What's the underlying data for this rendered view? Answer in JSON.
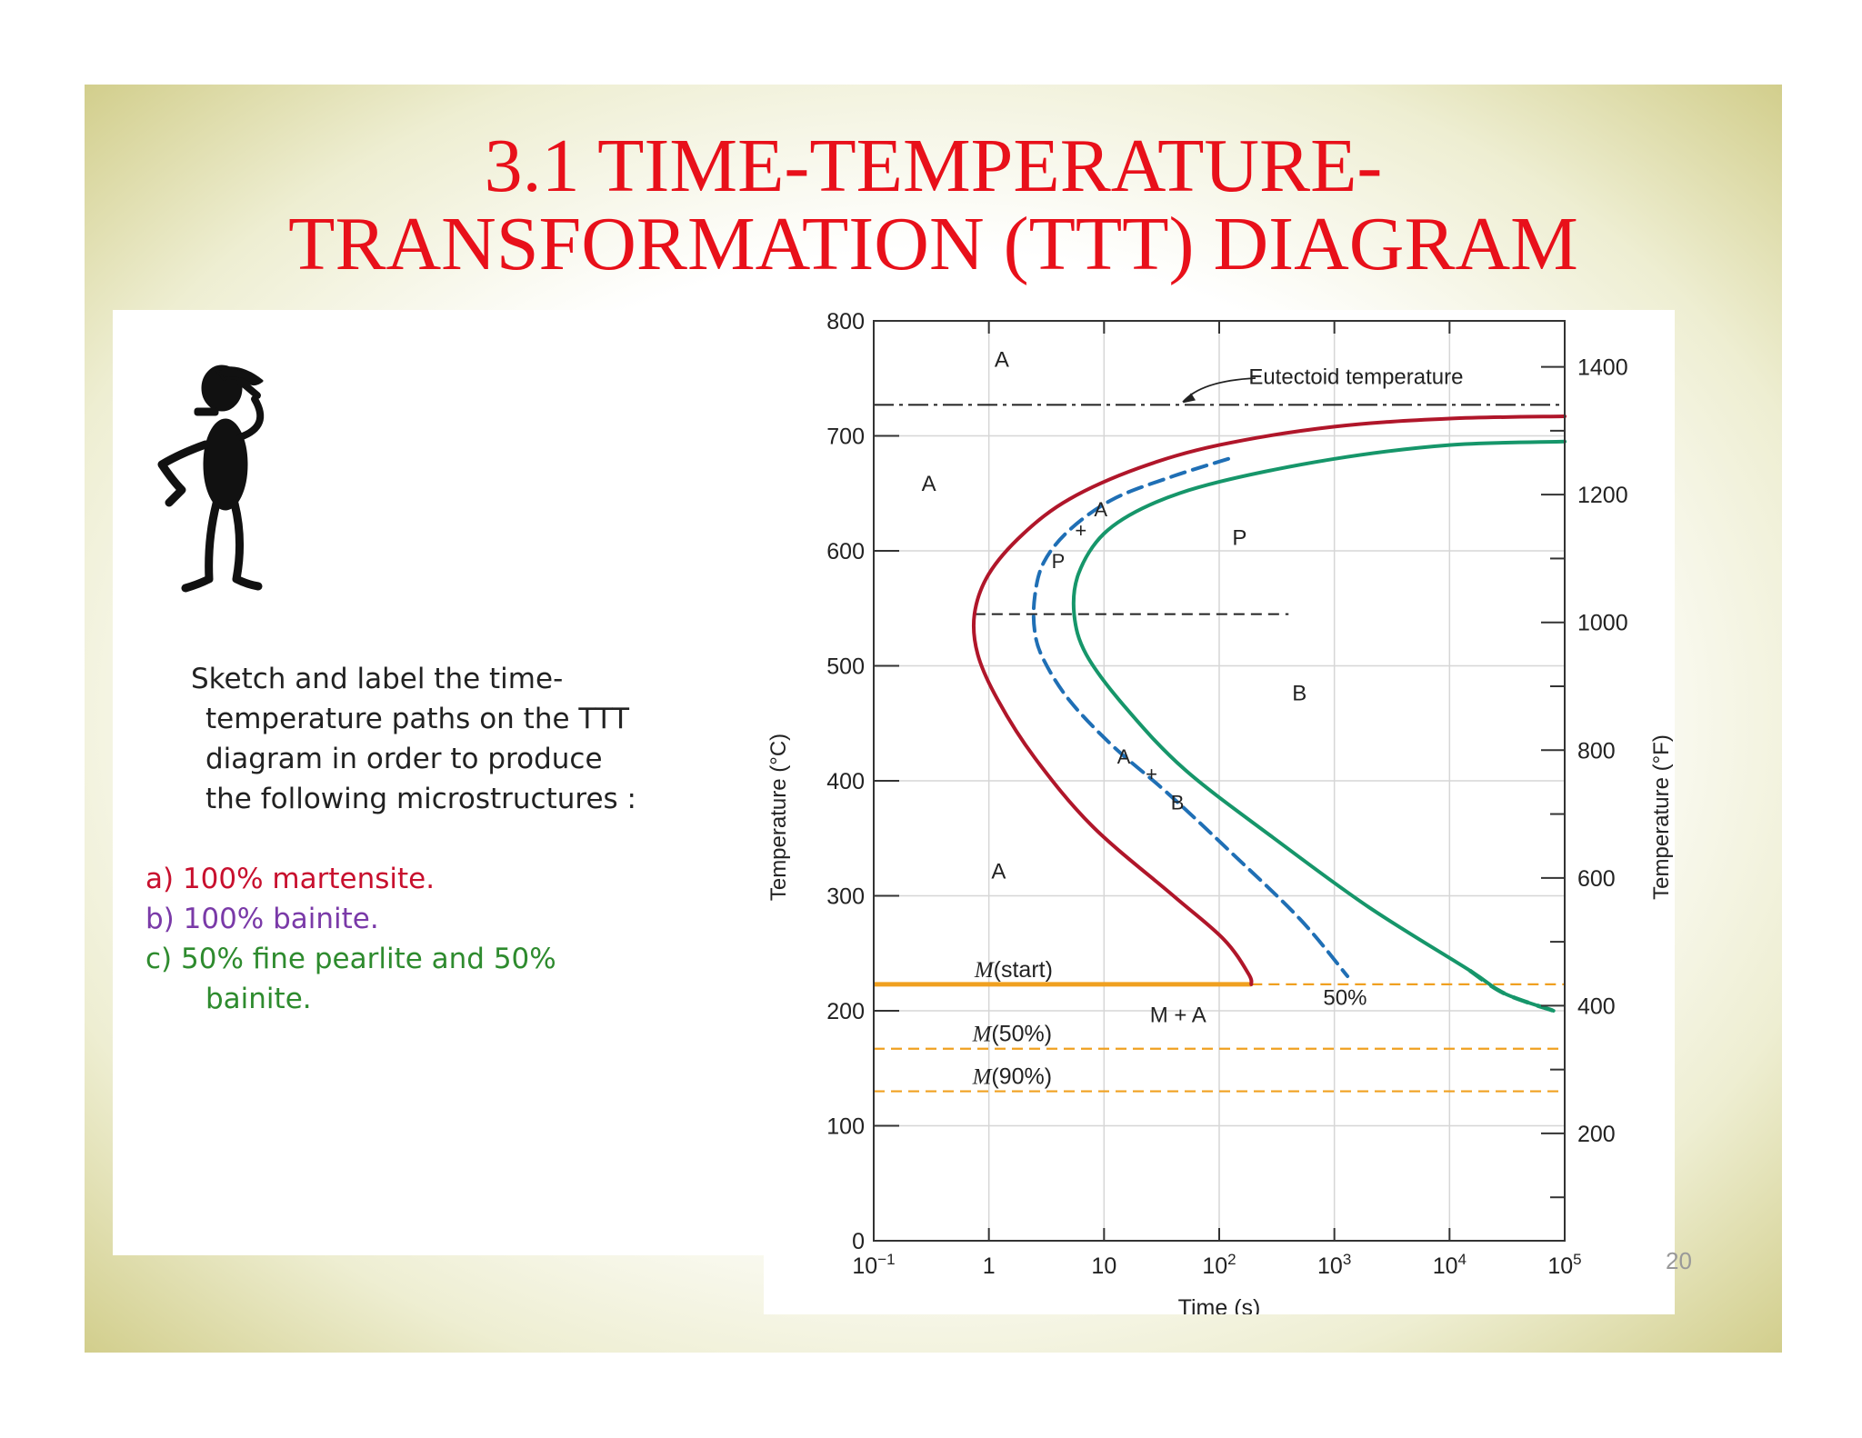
{
  "slide": {
    "title_line1": "3.1    TIME-TEMPERATURE-",
    "title_line2": "TRANSFORMATION (TTT) DIAGRAM",
    "page_number": "20"
  },
  "prompt": {
    "line1": "Sketch and label the time-",
    "line2": "temperature paths on the TTT",
    "line3": "diagram in order to produce",
    "line4": "the following microstructures :"
  },
  "answers": {
    "a": "a) 100% martensite.",
    "b": "b) 100% bainite.",
    "c_line1": "c)  50% fine pearlite and 50%",
    "c_line2": "bainite."
  },
  "colors": {
    "title": "#e8101a",
    "start_curve": "#b0162a",
    "half_curve": "#1f6fb5",
    "finish_curve": "#16966a",
    "martensite_lines": "#f0a020",
    "answer_a": "#c8102e",
    "answer_b": "#7a3aa8",
    "answer_c": "#2e8b2e"
  },
  "chart_data": {
    "type": "line",
    "title": "",
    "xlabel": "Time (s)",
    "ylabel": "Temperature (°C)",
    "ylabel_right": "Temperature (°F)",
    "x_scale": "log",
    "xlim": [
      0.1,
      100000
    ],
    "ylim": [
      0,
      800
    ],
    "right_axis_range_F": [
      32,
      1472
    ],
    "x_ticks": [
      {
        "value": 0.1,
        "base": "10",
        "exp": "−1"
      },
      {
        "value": 1,
        "base": "1",
        "exp": ""
      },
      {
        "value": 10,
        "base": "10",
        "exp": ""
      },
      {
        "value": 100,
        "base": "10",
        "exp": "2"
      },
      {
        "value": 1000,
        "base": "10",
        "exp": "3"
      },
      {
        "value": 10000,
        "base": "10",
        "exp": "4"
      },
      {
        "value": 100000,
        "base": "10",
        "exp": "5"
      }
    ],
    "y_ticks": [
      "0",
      "100",
      "200",
      "300",
      "400",
      "500",
      "600",
      "700",
      "800"
    ],
    "y_tick_values": [
      0,
      100,
      200,
      300,
      400,
      500,
      600,
      700,
      800
    ],
    "y_ticks_right": [
      "200",
      "400",
      "600",
      "800",
      "1000",
      "1200",
      "1400"
    ],
    "y_ticks_right_values": [
      200,
      400,
      600,
      800,
      1000,
      1200,
      1400
    ],
    "grid": true,
    "series": [
      {
        "role": "start",
        "style": "solid",
        "points": [
          [
            100000,
            717
          ],
          [
            10000,
            715
          ],
          [
            1000,
            708
          ],
          [
            100,
            692
          ],
          [
            20,
            672
          ],
          [
            5,
            645
          ],
          [
            2,
            615
          ],
          [
            1,
            580
          ],
          [
            0.75,
            545
          ],
          [
            0.8,
            510
          ],
          [
            1.2,
            470
          ],
          [
            2.5,
            420
          ],
          [
            8,
            360
          ],
          [
            40,
            300
          ],
          [
            110,
            262
          ],
          [
            180,
            232
          ],
          [
            190,
            223
          ]
        ]
      },
      {
        "role": "50%",
        "style": "dashed",
        "points": [
          [
            120,
            680
          ],
          [
            40,
            665
          ],
          [
            12,
            645
          ],
          [
            5,
            618
          ],
          [
            3,
            590
          ],
          [
            2.5,
            560
          ],
          [
            2.5,
            530
          ],
          [
            3,
            505
          ],
          [
            5,
            470
          ],
          [
            12,
            430
          ],
          [
            35,
            390
          ],
          [
            120,
            340
          ],
          [
            500,
            280
          ],
          [
            1300,
            230
          ]
        ]
      },
      {
        "role": "finish",
        "style": "solid",
        "points": [
          [
            100000,
            695
          ],
          [
            10000,
            692
          ],
          [
            1000,
            680
          ],
          [
            100,
            660
          ],
          [
            25,
            640
          ],
          [
            10,
            615
          ],
          [
            6,
            580
          ],
          [
            5.5,
            545
          ],
          [
            7,
            510
          ],
          [
            15,
            465
          ],
          [
            50,
            410
          ],
          [
            300,
            350
          ],
          [
            2000,
            290
          ],
          [
            15000,
            235
          ],
          [
            30000,
            215
          ],
          [
            80000,
            200
          ]
        ]
      }
    ],
    "reference_lines": [
      {
        "name": "Eutectoid temperature",
        "temp": 727,
        "style": "dashdot"
      },
      {
        "name": "",
        "temp": 545,
        "style": "dashed",
        "x_range": [
          0.75,
          400
        ]
      },
      {
        "name": "M(start)",
        "temp": 223,
        "style": "solid-then-dashed",
        "x_break": 190
      },
      {
        "name": "M(50%)",
        "temp": 167,
        "style": "dashed"
      },
      {
        "name": "M(90%)",
        "temp": 130,
        "style": "dashed"
      }
    ],
    "annotations": {
      "eutectoid": "Eutectoid temperature",
      "m_start_italic": "M",
      "m_start_rest": "(start)",
      "m50_italic": "M",
      "m50_rest": "(50%)",
      "m90_italic": "M",
      "m90_rest": "(90%)",
      "region_austenite": "A",
      "region_pearlite": "P",
      "region_bainite": "B",
      "mix_a": "A",
      "mix_plus": "+",
      "mix_p": "P",
      "mix_b": "B",
      "m_plus_a": "M + A",
      "fifty_percent": "50%"
    }
  }
}
